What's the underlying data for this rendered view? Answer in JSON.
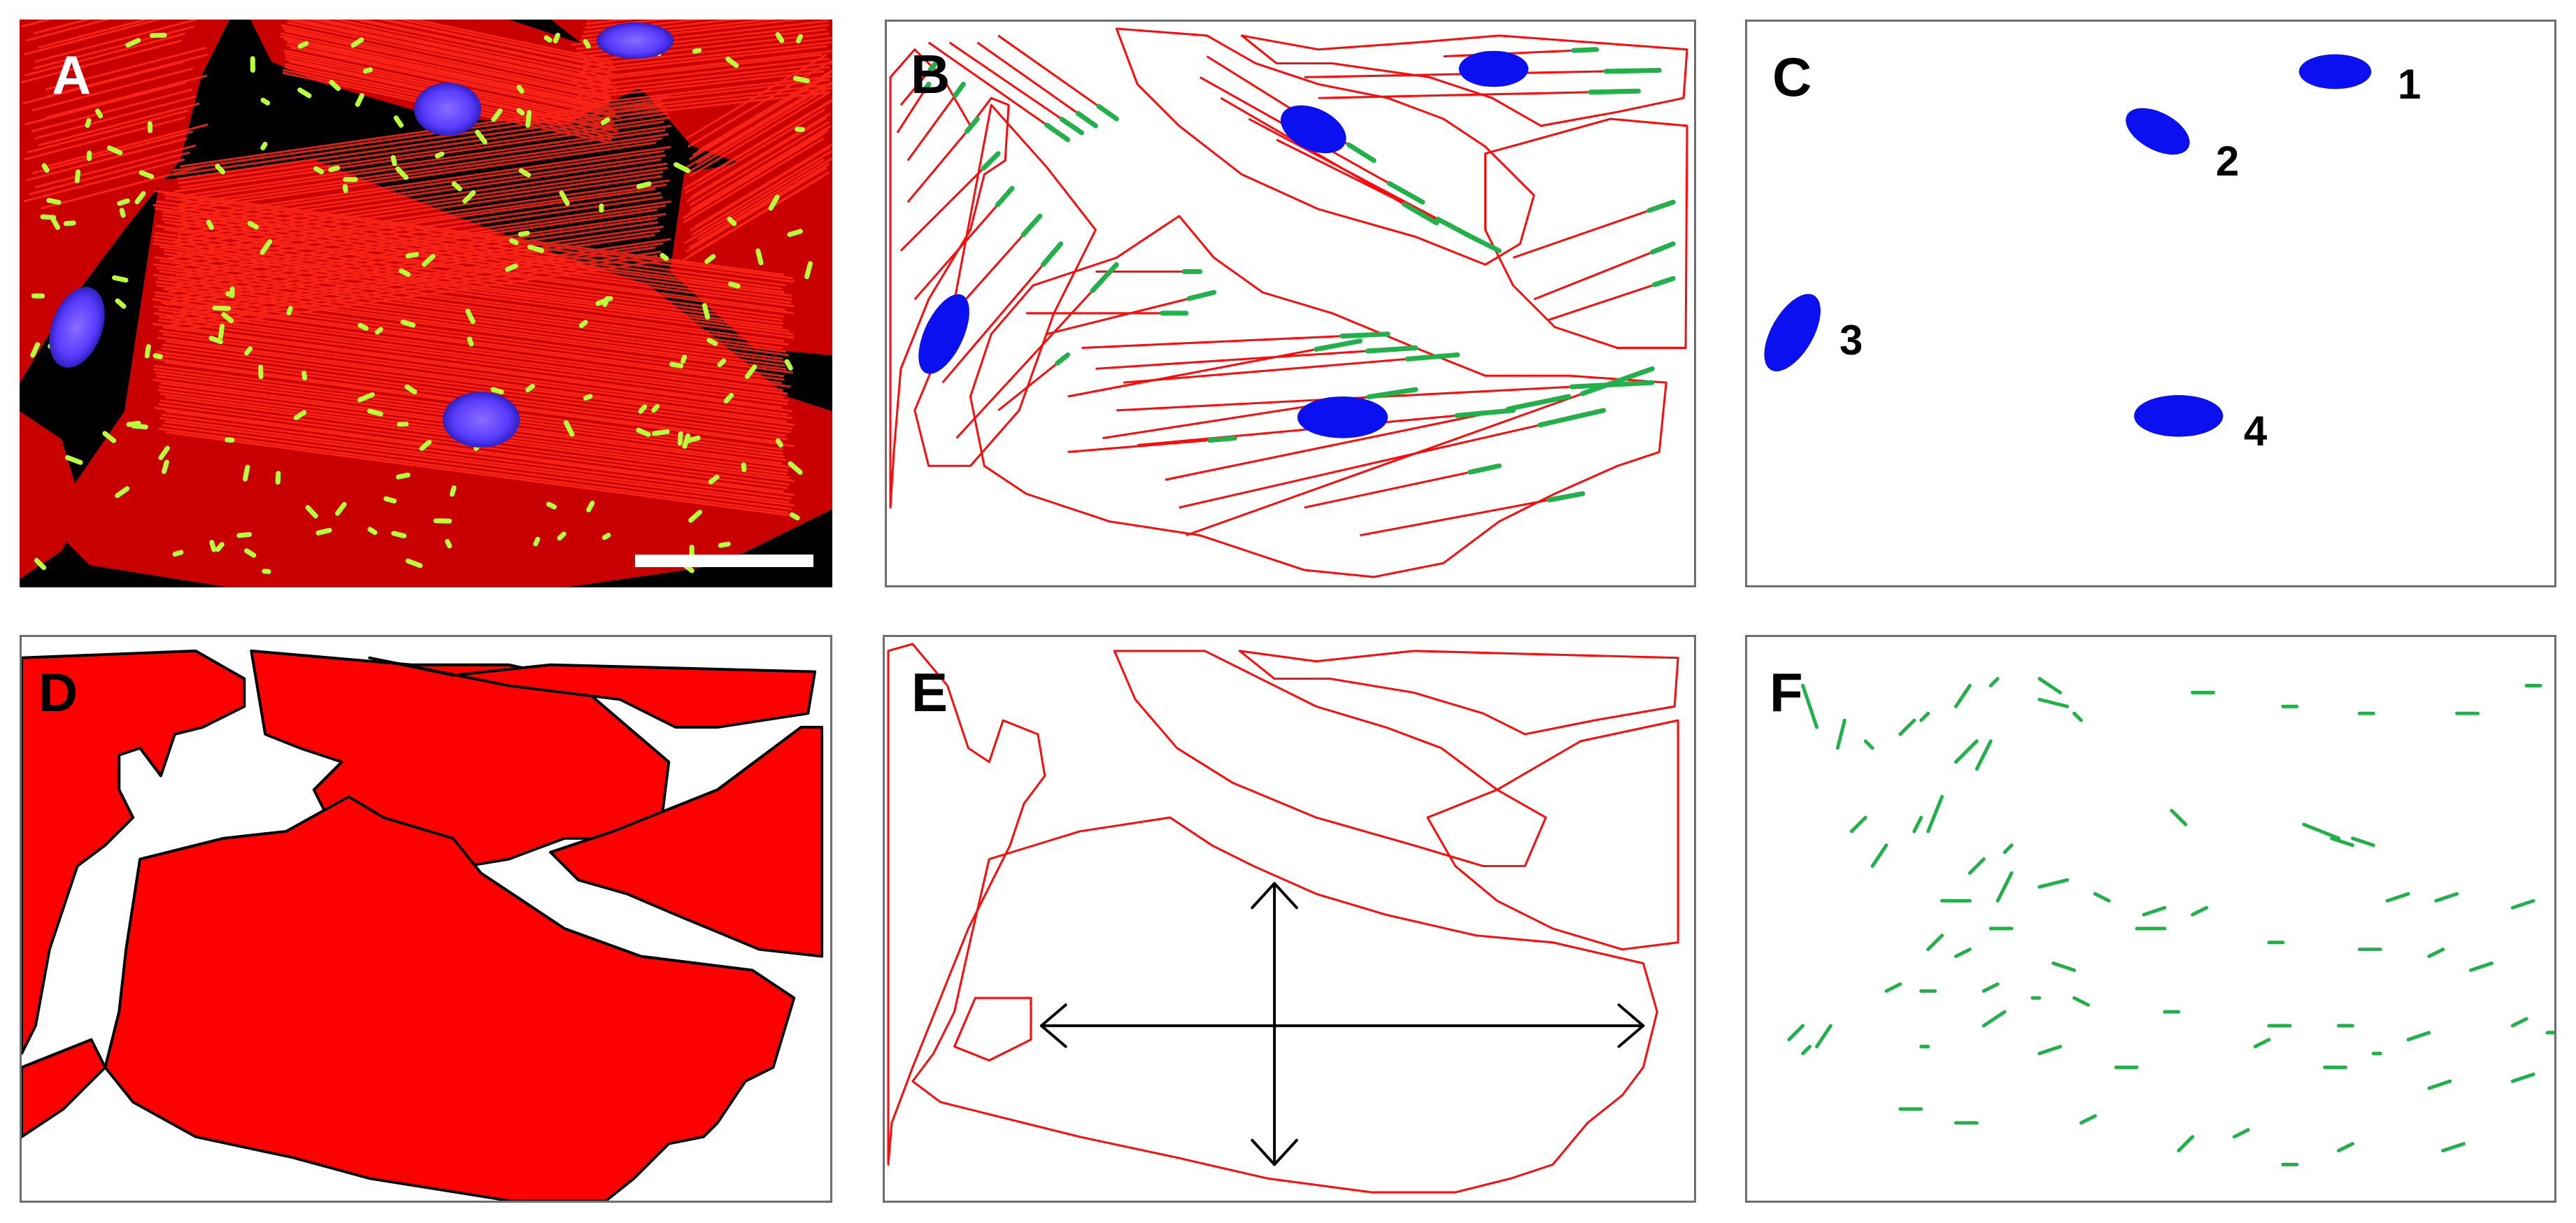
{
  "colors": {
    "actin_red": "#ff0a0a",
    "adhesion_green": "#22b04a",
    "nucleus_blue": "#0a10f0",
    "cell_fill_red": "#ff0000",
    "outline_black": "#000000",
    "scale_bar": "#ffffff",
    "panel_border": "#6e6e6e"
  },
  "panels": {
    "a": {
      "label": "A",
      "content": "fluorescence-micrograph"
    },
    "b": {
      "label": "B",
      "content": "segmentation-overlay"
    },
    "c": {
      "label": "C",
      "content": "nuclei-map",
      "nuclei_labels": [
        "1",
        "2",
        "3",
        "4"
      ]
    },
    "d": {
      "label": "D",
      "content": "cell-area-mask"
    },
    "e": {
      "label": "E",
      "content": "cell-outlines-with-axes"
    },
    "f": {
      "label": "F",
      "content": "focal-adhesions-map"
    }
  }
}
